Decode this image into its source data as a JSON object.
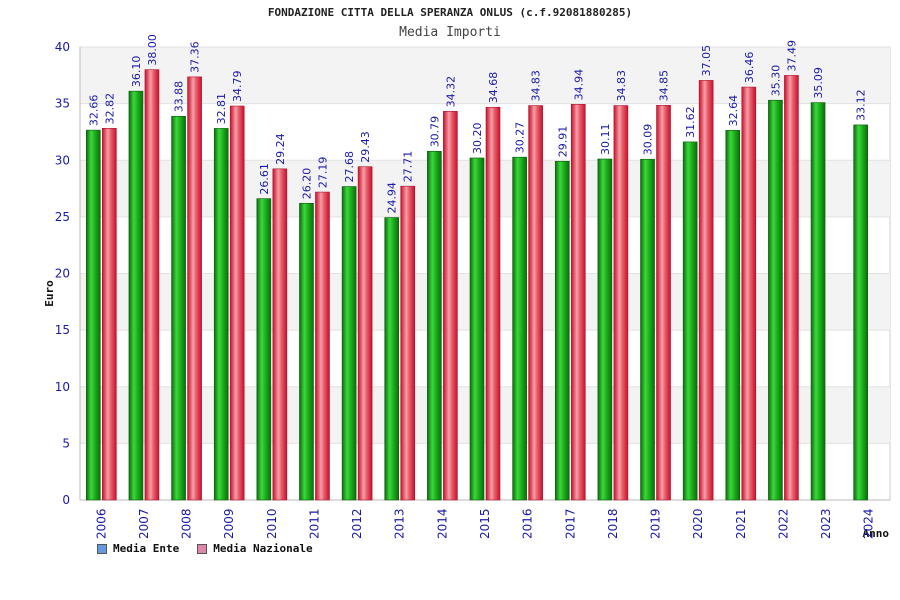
{
  "chart_data": {
    "type": "bar",
    "title": "FONDAZIONE CITTA DELLA SPERANZA ONLUS (c.f.92081880285)",
    "subtitle": "Media Importi",
    "xlabel": "Anno",
    "ylabel": "Euro",
    "ylim": [
      0,
      40
    ],
    "yticks": [
      "0",
      "5",
      "10",
      "15",
      "20",
      "25",
      "30",
      "35",
      "40"
    ],
    "categories": [
      "2006",
      "2007",
      "2008",
      "2009",
      "2010",
      "2011",
      "2012",
      "2013",
      "2014",
      "2015",
      "2016",
      "2017",
      "2018",
      "2019",
      "2020",
      "2021",
      "2022",
      "2023",
      "2024"
    ],
    "series": [
      {
        "name": "Media Ente",
        "values": [
          32.66,
          36.1,
          33.88,
          32.81,
          26.61,
          26.2,
          27.68,
          24.94,
          30.79,
          30.2,
          30.27,
          29.91,
          30.11,
          30.09,
          31.62,
          32.64,
          35.3,
          35.09,
          33.12
        ],
        "labels": [
          "32.66",
          "36.10",
          "33.88",
          "32.81",
          "26.61",
          "26.20",
          "27.68",
          "24.94",
          "30.79",
          "30.20",
          "30.27",
          "29.91",
          "30.11",
          "30.09",
          "31.62",
          "32.64",
          "35.30",
          "35.09",
          "33.12"
        ],
        "color": "#11aa11",
        "legend_color": "#6699dd"
      },
      {
        "name": "Media Nazionale",
        "values": [
          32.82,
          38.0,
          37.36,
          34.79,
          29.24,
          27.19,
          29.43,
          27.71,
          34.32,
          34.68,
          34.83,
          34.94,
          34.83,
          34.85,
          37.05,
          36.46,
          37.49,
          null,
          null
        ],
        "labels": [
          "32.82",
          "38.00",
          "37.36",
          "34.79",
          "29.24",
          "27.19",
          "29.43",
          "27.71",
          "34.32",
          "34.68",
          "34.83",
          "34.94",
          "34.83",
          "34.85",
          "37.05",
          "36.46",
          "37.49",
          null,
          null
        ],
        "color": "#e63344",
        "legend_color": "#dd88aa"
      }
    ],
    "grid": true,
    "legend_position": "bottom-left"
  }
}
